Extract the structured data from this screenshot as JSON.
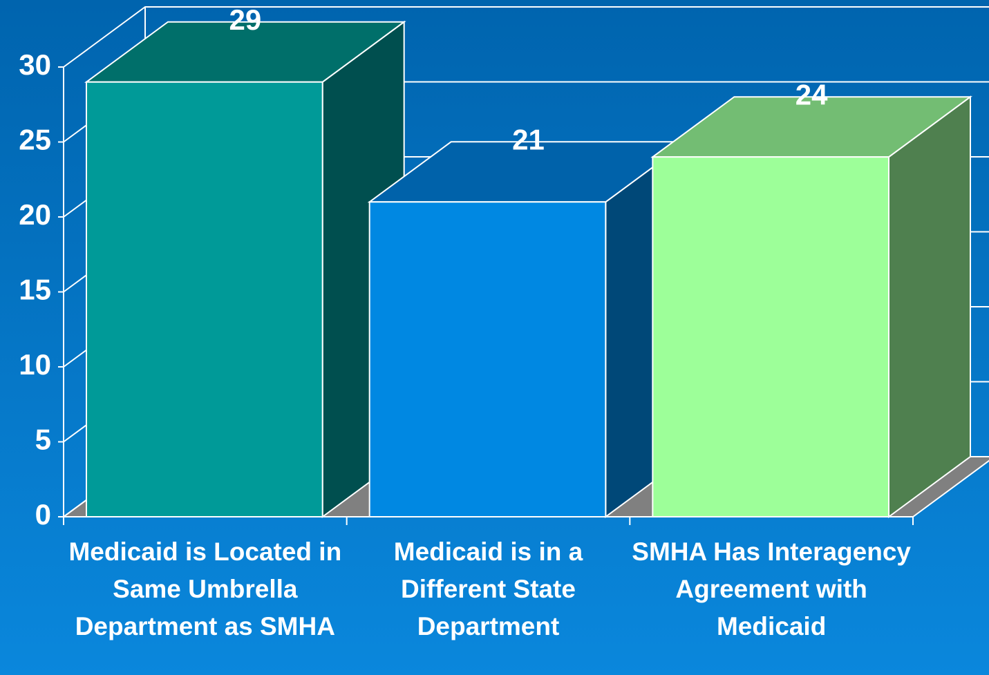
{
  "chart_data": {
    "type": "bar3d",
    "categories": [
      "Medicaid is Located in Same Umbrella Department as SMHA",
      "Medicaid is in a Different State Department",
      "SMHA Has Interagency Agreement with Medicaid"
    ],
    "values": [
      29,
      21,
      24
    ],
    "colors": [
      "#009a98",
      "#0088e2",
      "#9dff99"
    ],
    "top_colors": [
      "#006f6a",
      "#0062aa",
      "#73bd73"
    ],
    "side_colors": [
      "#004f4f",
      "#004878",
      "#4f804f"
    ],
    "ylim": [
      0,
      30
    ],
    "yticks": [
      0,
      5,
      10,
      15,
      20,
      25,
      30
    ],
    "grid": true
  }
}
